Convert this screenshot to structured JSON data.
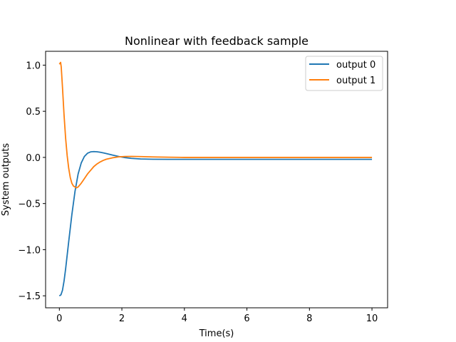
{
  "chart_data": {
    "type": "line",
    "title": "Nonlinear with feedback sample",
    "xlabel": "Time(s)",
    "ylabel": "System outputs",
    "xlim": [
      -0.44,
      10.5
    ],
    "ylim": [
      -1.63,
      1.15
    ],
    "xticks": [
      0,
      2,
      4,
      6,
      8,
      10
    ],
    "xtick_labels": [
      "0",
      "2",
      "4",
      "6",
      "8",
      "10"
    ],
    "yticks": [
      -1.5,
      -1.0,
      -0.5,
      0.0,
      0.5,
      1.0
    ],
    "ytick_labels": [
      "−1.5",
      "−1.0",
      "−0.5",
      "0.0",
      "0.5",
      "1.0"
    ],
    "grid": false,
    "legend_position": "top-right",
    "series": [
      {
        "name": "output 0",
        "color": "#1f77b4",
        "x": [
          0,
          0.05,
          0.1,
          0.15,
          0.2,
          0.3,
          0.4,
          0.5,
          0.6,
          0.7,
          0.8,
          0.9,
          1.0,
          1.1,
          1.2,
          1.3,
          1.4,
          1.5,
          1.7,
          1.9,
          2.1,
          2.3,
          2.6,
          3.0,
          3.5,
          4.0,
          5.0,
          6.0,
          7.0,
          8.0,
          9.0,
          10.0
        ],
        "y": [
          -1.5,
          -1.49,
          -1.44,
          -1.34,
          -1.21,
          -0.91,
          -0.62,
          -0.37,
          -0.18,
          -0.06,
          0.01,
          0.045,
          0.06,
          0.063,
          0.061,
          0.056,
          0.05,
          0.042,
          0.025,
          0.01,
          -0.002,
          -0.01,
          -0.017,
          -0.02,
          -0.021,
          -0.021,
          -0.021,
          -0.021,
          -0.021,
          -0.021,
          -0.021,
          -0.021
        ]
      },
      {
        "name": "output 1",
        "color": "#ff7f0e",
        "x": [
          0,
          0.02,
          0.04,
          0.06,
          0.1,
          0.15,
          0.2,
          0.25,
          0.3,
          0.35,
          0.4,
          0.45,
          0.5,
          0.55,
          0.6,
          0.7,
          0.8,
          0.9,
          1.0,
          1.1,
          1.2,
          1.3,
          1.4,
          1.5,
          1.7,
          1.9,
          2.1,
          2.3,
          2.6,
          3.0,
          3.5,
          4.0,
          5.0,
          6.0,
          7.0,
          8.0,
          9.0,
          10.0
        ],
        "y": [
          1.01,
          1.02,
          1.03,
          0.98,
          0.76,
          0.46,
          0.21,
          0.02,
          -0.12,
          -0.22,
          -0.28,
          -0.31,
          -0.32,
          -0.33,
          -0.32,
          -0.28,
          -0.23,
          -0.18,
          -0.14,
          -0.1,
          -0.072,
          -0.05,
          -0.033,
          -0.02,
          -0.004,
          0.006,
          0.01,
          0.011,
          0.009,
          0.005,
          0.002,
          0.0,
          0.0,
          0.0,
          0.0,
          0.0,
          0.0,
          0.0
        ]
      }
    ]
  }
}
